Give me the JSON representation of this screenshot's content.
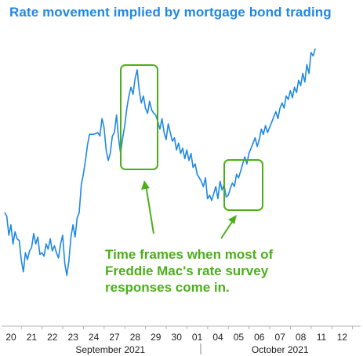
{
  "chart_data": {
    "type": "line",
    "title": "Rate movement implied by mortgage bond trading",
    "xlabel": "",
    "ylabel": "",
    "x_tick_labels": [
      "20",
      "21",
      "22",
      "23",
      "24",
      "27",
      "28",
      "29",
      "30",
      "01",
      "04",
      "05",
      "06",
      "07",
      "08",
      "11",
      "12"
    ],
    "month_labels": [
      "September 2021",
      "October 2021"
    ],
    "grid": false,
    "legend": "none",
    "y_axis_shown": false,
    "series": [
      {
        "values_relative": [
          [
            0.0,
            0.4
          ],
          [
            0.1,
            0.38
          ],
          [
            0.2,
            0.27
          ],
          [
            0.3,
            0.33
          ],
          [
            0.4,
            0.22
          ],
          [
            0.5,
            0.29
          ],
          [
            0.6,
            0.25
          ],
          [
            0.7,
            0.24
          ],
          [
            0.8,
            0.13
          ],
          [
            0.9,
            0.06
          ],
          [
            1.0,
            0.17
          ],
          [
            1.1,
            0.13
          ],
          [
            1.2,
            0.18
          ],
          [
            1.3,
            0.2
          ],
          [
            1.4,
            0.28
          ],
          [
            1.5,
            0.22
          ],
          [
            1.6,
            0.26
          ],
          [
            1.7,
            0.16
          ],
          [
            1.8,
            0.17
          ],
          [
            1.9,
            0.15
          ],
          [
            2.0,
            0.22
          ],
          [
            2.1,
            0.19
          ],
          [
            2.2,
            0.25
          ],
          [
            2.3,
            0.18
          ],
          [
            2.4,
            0.21
          ],
          [
            2.5,
            0.17
          ],
          [
            2.6,
            0.14
          ],
          [
            2.7,
            0.22
          ],
          [
            2.8,
            0.27
          ],
          [
            2.9,
            0.11
          ],
          [
            3.0,
            0.04
          ],
          [
            3.1,
            0.12
          ],
          [
            3.2,
            0.26
          ],
          [
            3.3,
            0.33
          ],
          [
            3.4,
            0.26
          ],
          [
            3.5,
            0.37
          ],
          [
            3.6,
            0.4
          ],
          [
            3.7,
            0.56
          ],
          [
            3.8,
            0.62
          ],
          [
            3.9,
            0.7
          ],
          [
            4.0,
            0.79
          ],
          [
            4.1,
            0.85
          ],
          [
            4.3,
            0.85
          ],
          [
            4.5,
            0.86
          ],
          [
            4.6,
            0.84
          ],
          [
            4.7,
            0.94
          ],
          [
            4.8,
            0.89
          ],
          [
            4.9,
            0.76
          ],
          [
            5.0,
            0.7
          ],
          [
            5.1,
            0.74
          ],
          [
            5.2,
            0.84
          ],
          [
            5.3,
            0.86
          ],
          [
            5.4,
            0.96
          ],
          [
            5.5,
            0.83
          ],
          [
            5.6,
            0.74
          ],
          [
            5.7,
            0.83
          ],
          [
            5.8,
            0.9
          ],
          [
            5.9,
            1.0
          ],
          [
            6.0,
            1.07
          ],
          [
            6.1,
            1.12
          ],
          [
            6.2,
            1.08
          ],
          [
            6.3,
            1.17
          ],
          [
            6.4,
            1.22
          ],
          [
            6.5,
            1.1
          ],
          [
            6.6,
            1.03
          ],
          [
            6.7,
            1.07
          ],
          [
            6.8,
            1.0
          ],
          [
            6.9,
            0.97
          ],
          [
            7.0,
            1.04
          ],
          [
            7.1,
            0.99
          ],
          [
            7.2,
            0.97
          ],
          [
            7.3,
            0.96
          ],
          [
            7.4,
            0.92
          ],
          [
            7.5,
            0.88
          ],
          [
            7.6,
            0.94
          ],
          [
            7.7,
            0.86
          ],
          [
            7.8,
            0.82
          ],
          [
            7.9,
            0.91
          ],
          [
            8.0,
            0.86
          ],
          [
            8.1,
            0.81
          ],
          [
            8.2,
            0.83
          ],
          [
            8.3,
            0.76
          ],
          [
            8.4,
            0.8
          ],
          [
            8.5,
            0.74
          ],
          [
            8.6,
            0.77
          ],
          [
            8.7,
            0.71
          ],
          [
            8.8,
            0.76
          ],
          [
            8.9,
            0.7
          ],
          [
            9.0,
            0.74
          ],
          [
            9.1,
            0.66
          ],
          [
            9.2,
            0.68
          ],
          [
            9.3,
            0.62
          ],
          [
            9.4,
            0.6
          ],
          [
            9.5,
            0.58
          ],
          [
            9.6,
            0.55
          ],
          [
            9.7,
            0.6
          ],
          [
            9.8,
            0.48
          ],
          [
            9.9,
            0.5
          ],
          [
            10.0,
            0.47
          ],
          [
            10.1,
            0.51
          ],
          [
            10.2,
            0.55
          ],
          [
            10.3,
            0.48
          ],
          [
            10.4,
            0.58
          ],
          [
            10.5,
            0.53
          ],
          [
            10.6,
            0.56
          ],
          [
            10.7,
            0.49
          ],
          [
            10.8,
            0.5
          ],
          [
            10.9,
            0.54
          ],
          [
            11.0,
            0.57
          ],
          [
            11.1,
            0.55
          ],
          [
            11.2,
            0.62
          ],
          [
            11.3,
            0.6
          ],
          [
            11.4,
            0.64
          ],
          [
            11.5,
            0.68
          ],
          [
            11.6,
            0.72
          ],
          [
            11.7,
            0.68
          ],
          [
            11.8,
            0.74
          ],
          [
            11.9,
            0.77
          ],
          [
            12.0,
            0.8
          ],
          [
            12.1,
            0.83
          ],
          [
            12.2,
            0.78
          ],
          [
            12.3,
            0.82
          ],
          [
            12.4,
            0.88
          ],
          [
            12.5,
            0.85
          ],
          [
            12.6,
            0.9
          ],
          [
            12.7,
            0.86
          ],
          [
            12.8,
            0.89
          ],
          [
            12.9,
            0.92
          ],
          [
            13.0,
            0.95
          ],
          [
            13.1,
            0.98
          ],
          [
            13.2,
            0.94
          ],
          [
            13.3,
            1.0
          ],
          [
            13.4,
            1.03
          ],
          [
            13.5,
            1.0
          ],
          [
            13.6,
            1.07
          ],
          [
            13.7,
            1.05
          ],
          [
            13.8,
            1.1
          ],
          [
            13.9,
            1.06
          ],
          [
            14.0,
            1.12
          ],
          [
            14.1,
            1.09
          ],
          [
            14.2,
            1.16
          ],
          [
            14.3,
            1.13
          ],
          [
            14.4,
            1.2
          ],
          [
            14.5,
            1.15
          ],
          [
            14.6,
            1.25
          ],
          [
            14.7,
            1.2
          ],
          [
            14.8,
            1.32
          ],
          [
            14.9,
            1.3
          ],
          [
            15.0,
            1.34
          ]
        ]
      }
    ],
    "annotations": [
      {
        "text_lines": [
          "Time frames when most of",
          "Freddie Mac's rate survey",
          "responses come in."
        ]
      }
    ]
  },
  "colors": {
    "title": "#1e88e5",
    "line": "#1e88e5",
    "annotation": "#4caf1a",
    "axis": "#b0b0b0",
    "divider": "#888888"
  }
}
